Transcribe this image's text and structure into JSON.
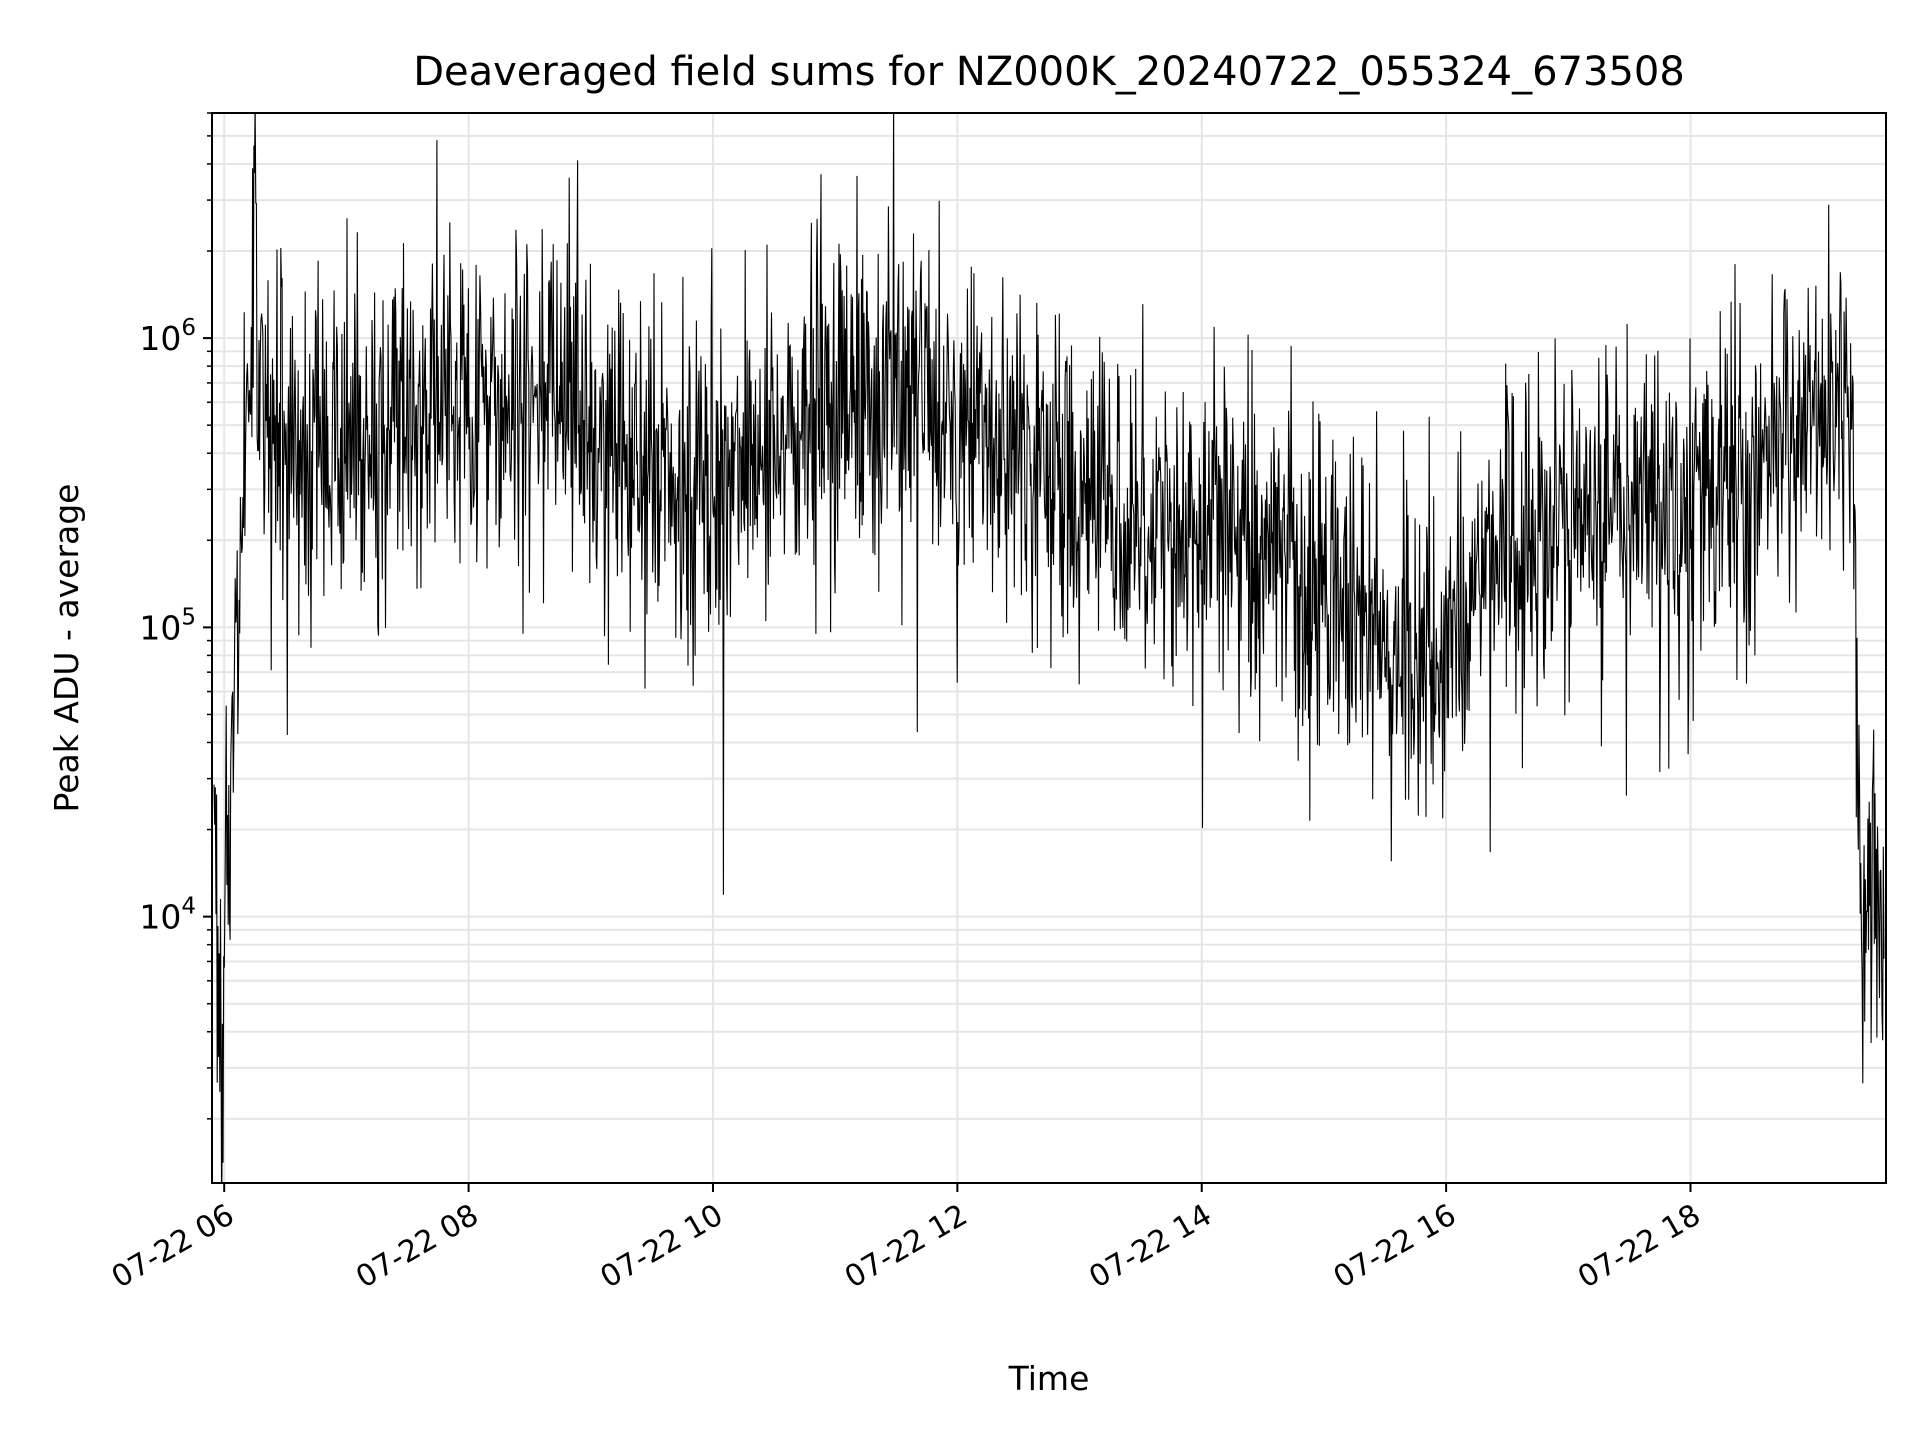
{
  "chart_data": {
    "type": "line",
    "title": "Deaveraged field sums for NZ000K_20240722_055324_673508",
    "xlabel": "Time",
    "ylabel": "Peak ADU - average",
    "y_scale": "log",
    "ylim": [
      1200,
      6000000
    ],
    "xlim": [
      "2024-07-22 05:54",
      "2024-07-22 19:36"
    ],
    "x_ticks": [
      {
        "time": "2024-07-22 06:00",
        "label": "07-22 06"
      },
      {
        "time": "2024-07-22 08:00",
        "label": "07-22 08"
      },
      {
        "time": "2024-07-22 10:00",
        "label": "07-22 10"
      },
      {
        "time": "2024-07-22 12:00",
        "label": "07-22 12"
      },
      {
        "time": "2024-07-22 14:00",
        "label": "07-22 14"
      },
      {
        "time": "2024-07-22 16:00",
        "label": "07-22 16"
      },
      {
        "time": "2024-07-22 18:00",
        "label": "07-22 18"
      }
    ],
    "y_ticks": [
      {
        "value": 10000,
        "base": "10",
        "exp": "4"
      },
      {
        "value": 100000,
        "base": "10",
        "exp": "5"
      },
      {
        "value": 1000000,
        "base": "10",
        "exp": "6"
      }
    ],
    "grid": true,
    "legend": "none",
    "line_color": "#000000",
    "grid_color": "#e6e6e6",
    "series": [
      {
        "x": [
          "2024-07-22 05:55",
          "2024-07-22 05:56",
          "2024-07-22 05:57",
          "2024-07-22 05:58",
          "2024-07-22 05:59",
          "2024-07-22 06:00",
          "2024-07-22 06:01",
          "2024-07-22 06:03",
          "2024-07-22 06:05",
          "2024-07-22 06:07",
          "2024-07-22 06:10",
          "2024-07-22 06:13",
          "2024-07-22 06:15",
          "2024-07-22 06:16",
          "2024-07-22 06:18",
          "2024-07-22 06:20",
          "2024-07-22 06:22",
          "2024-07-22 06:25",
          "2024-07-22 06:30",
          "2024-07-22 06:40",
          "2024-07-22 06:50",
          "2024-07-22 07:00",
          "2024-07-22 07:20",
          "2024-07-22 07:40",
          "2024-07-22 08:00",
          "2024-07-22 08:20",
          "2024-07-22 08:40",
          "2024-07-22 09:00",
          "2024-07-22 09:20",
          "2024-07-22 09:40",
          "2024-07-22 10:00",
          "2024-07-22 10:20",
          "2024-07-22 10:40",
          "2024-07-22 11:00",
          "2024-07-22 11:20",
          "2024-07-22 11:40",
          "2024-07-22 12:00",
          "2024-07-22 12:20",
          "2024-07-22 12:40",
          "2024-07-22 13:00",
          "2024-07-22 13:20",
          "2024-07-22 13:40",
          "2024-07-22 14:00",
          "2024-07-22 14:20",
          "2024-07-22 14:40",
          "2024-07-22 15:00",
          "2024-07-22 15:20",
          "2024-07-22 15:40",
          "2024-07-22 16:00",
          "2024-07-22 16:20",
          "2024-07-22 16:40",
          "2024-07-22 17:00",
          "2024-07-22 17:20",
          "2024-07-22 17:40",
          "2024-07-22 18:00",
          "2024-07-22 18:20",
          "2024-07-22 18:40",
          "2024-07-22 19:00",
          "2024-07-22 19:15",
          "2024-07-22 19:20",
          "2024-07-22 19:22",
          "2024-07-22 19:24",
          "2024-07-22 19:27",
          "2024-07-22 19:30",
          "2024-07-22 19:33",
          "2024-07-22 19:35"
        ],
        "y": [
          20000,
          11000,
          6000,
          2800,
          1700,
          7000,
          12000,
          35000,
          60000,
          150000,
          400000,
          1000000,
          4000000,
          1000000,
          600000,
          450000,
          380000,
          400000,
          450000,
          400000,
          380000,
          450000,
          500000,
          550000,
          500000,
          550000,
          650000,
          500000,
          350000,
          320000,
          330000,
          400000,
          450000,
          600000,
          650000,
          600000,
          500000,
          420000,
          380000,
          300000,
          260000,
          240000,
          230000,
          200000,
          170000,
          120000,
          100000,
          90000,
          80000,
          180000,
          200000,
          230000,
          260000,
          270000,
          280000,
          300000,
          380000,
          500000,
          600000,
          500000,
          40000,
          12000,
          8000,
          14000,
          10000,
          9000
        ]
      }
    ]
  }
}
